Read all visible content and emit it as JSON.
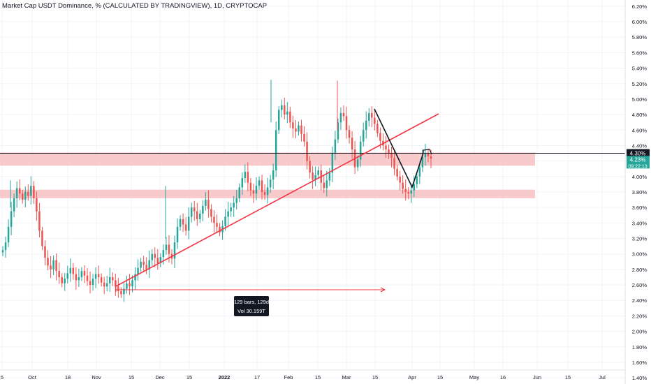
{
  "title": "Market Cap USDT Dominance, % (CALCULATED BY TRADINGVIEW), 1D, CRYPTOCAP",
  "colors": {
    "up": "#26a69a",
    "down": "#ef5350",
    "zone": "#f7b8bb",
    "trendline": "#f23645",
    "background": "#ffffff"
  },
  "chart_data": {
    "type": "candlestick",
    "title": "Market Cap USDT Dominance, % (CALCULATED BY TRADINGVIEW), 1D, CRYPTOCAP",
    "timeframe": "1D",
    "y_axis": {
      "ylim": [
        1.32,
        6.28
      ],
      "ticks": [
        "6.20%",
        "6.00%",
        "5.80%",
        "5.60%",
        "5.40%",
        "5.20%",
        "5.00%",
        "4.80%",
        "4.60%",
        "4.40%",
        "4.20%",
        "4.00%",
        "3.80%",
        "3.60%",
        "3.40%",
        "3.20%",
        "3.00%",
        "2.80%",
        "2.60%",
        "2.40%",
        "2.20%",
        "2.00%",
        "1.80%",
        "1.60%",
        "1.40%"
      ],
      "position": "right"
    },
    "x_axis": {
      "ticks": [
        "5",
        "Oct",
        "18",
        "Nov",
        "15",
        "Dec",
        "15",
        "2022",
        "17",
        "Feb",
        "15",
        "Mar",
        "15",
        "Apr",
        "15",
        "May",
        "16",
        "Jun",
        "15",
        "Jul"
      ],
      "bold_ticks": [
        "2022"
      ]
    },
    "price_tags": [
      {
        "value": "4.30%",
        "price": 4.3,
        "color": "#131722"
      },
      {
        "value": "4.23%",
        "price": 4.23,
        "color": "#26a69a",
        "countdown": "09:22:13"
      }
    ],
    "horizontal_line": 4.3,
    "zones": [
      {
        "from": 4.14,
        "to": 4.31
      },
      {
        "from": 3.72,
        "to": 3.83
      }
    ],
    "measure": {
      "line1": "129 bars, 129d",
      "line2": "Vol 30.159T"
    },
    "closes": [
      3.05,
      3.15,
      3.35,
      3.55,
      3.72,
      3.85,
      3.78,
      3.7,
      3.8,
      3.75,
      3.88,
      3.72,
      3.55,
      3.3,
      3.1,
      2.95,
      2.85,
      2.8,
      2.92,
      2.78,
      2.7,
      2.62,
      2.68,
      2.75,
      2.82,
      2.74,
      2.66,
      2.7,
      2.78,
      2.72,
      2.65,
      2.6,
      2.68,
      2.74,
      2.7,
      2.63,
      2.58,
      2.62,
      2.7,
      2.66,
      2.58,
      2.52,
      2.48,
      2.55,
      2.62,
      2.58,
      2.66,
      2.74,
      2.82,
      2.9,
      2.86,
      2.8,
      2.92,
      3.0,
      2.95,
      2.88,
      2.96,
      3.05,
      3.12,
      3.0,
      2.94,
      3.15,
      3.35,
      3.45,
      3.38,
      3.3,
      3.48,
      3.6,
      3.55,
      3.45,
      3.52,
      3.62,
      3.7,
      3.58,
      3.48,
      3.4,
      3.35,
      3.28,
      3.36,
      3.48,
      3.55,
      3.6,
      3.66,
      3.72,
      3.86,
      3.98,
      4.06,
      3.92,
      3.82,
      3.78,
      3.88,
      3.95,
      3.8,
      3.76,
      3.86,
      3.96,
      4.08,
      4.6,
      4.86,
      4.92,
      4.8,
      4.84,
      4.7,
      4.62,
      4.58,
      4.66,
      4.55,
      4.45,
      4.2,
      4.05,
      3.96,
      4.02,
      4.08,
      3.92,
      3.85,
      3.95,
      4.05,
      4.3,
      4.48,
      4.7,
      4.82,
      4.78,
      4.6,
      4.5,
      4.35,
      4.12,
      4.22,
      4.45,
      4.6,
      4.72,
      4.82,
      4.76,
      4.68,
      4.56,
      4.46,
      4.4,
      4.35,
      4.3,
      4.24,
      4.1,
      4.0,
      3.92,
      3.84,
      3.8,
      3.78,
      3.82,
      3.9,
      4.0,
      4.12,
      4.25,
      4.3,
      4.26,
      4.23
    ]
  }
}
